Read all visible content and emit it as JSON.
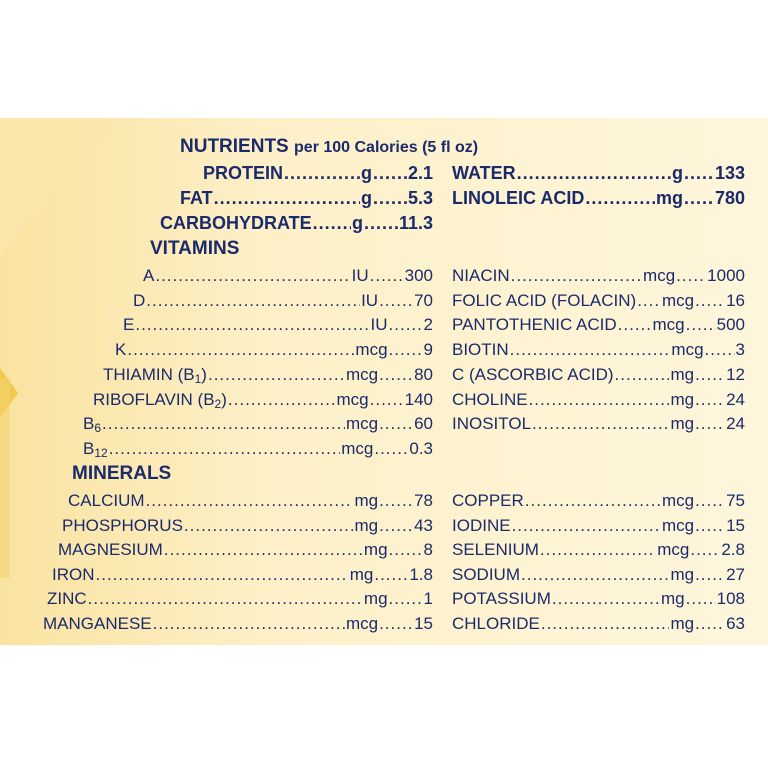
{
  "header": {
    "title": "NUTRIENTS",
    "subtitle": "per 100 Calories (5 fl oz)"
  },
  "macros_left": [
    {
      "label": "PROTEIN",
      "unit": "g",
      "value": "2.1"
    },
    {
      "label": "FAT",
      "unit": "g",
      "value": "5.3"
    },
    {
      "label": "CARBOHYDRATE",
      "unit": "g",
      "value": "11.3"
    }
  ],
  "macros_right": [
    {
      "label": "WATER",
      "unit": "g",
      "value": "133"
    },
    {
      "label": "LINOLEIC ACID",
      "unit": "mg",
      "value": "780"
    }
  ],
  "vitamins_heading": "VITAMINS",
  "vitamins_left": [
    {
      "label": "A",
      "unit": "IU",
      "value": "300"
    },
    {
      "label": "D",
      "unit": "IU",
      "value": "70"
    },
    {
      "label": "E",
      "unit": "IU",
      "value": "2"
    },
    {
      "label": "K",
      "unit": "mcg",
      "value": "9"
    },
    {
      "label": "THIAMIN (B",
      "sub": "1",
      "label_end": ")",
      "unit": "mcg",
      "value": "80"
    },
    {
      "label": "RIBOFLAVIN (B",
      "sub": "2",
      "label_end": ")",
      "unit": "mcg",
      "value": "140"
    },
    {
      "label": "B",
      "sub": "6",
      "label_end": "",
      "unit": "mcg",
      "value": "60"
    },
    {
      "label": "B",
      "sub": "12",
      "label_end": "",
      "unit": "mcg",
      "value": "0.3"
    }
  ],
  "vitamins_right": [
    {
      "label": "NIACIN",
      "unit": "mcg",
      "value": "1000"
    },
    {
      "label": "FOLIC ACID (FOLACIN)",
      "unit": "mcg",
      "value": "16"
    },
    {
      "label": "PANTOTHENIC ACID",
      "unit": "mcg",
      "value": "500"
    },
    {
      "label": "BIOTIN",
      "unit": "mcg",
      "value": "3"
    },
    {
      "label": "C (ASCORBIC ACID)",
      "unit": "mg",
      "value": "12"
    },
    {
      "label": "CHOLINE",
      "unit": "mg",
      "value": "24"
    },
    {
      "label": "INOSITOL",
      "unit": "mg",
      "value": "24"
    }
  ],
  "minerals_heading": "MINERALS",
  "minerals_left": [
    {
      "label": "CALCIUM",
      "unit": "mg",
      "value": "78"
    },
    {
      "label": "PHOSPHORUS",
      "unit": "mg",
      "value": "43"
    },
    {
      "label": "MAGNESIUM",
      "unit": "mg",
      "value": "8"
    },
    {
      "label": "IRON",
      "unit": "mg",
      "value": "1.8"
    },
    {
      "label": "ZINC",
      "unit": "mg",
      "value": "1"
    },
    {
      "label": "MANGANESE",
      "unit": "mcg",
      "value": "15"
    }
  ],
  "minerals_right": [
    {
      "label": "COPPER",
      "unit": "mcg",
      "value": "75"
    },
    {
      "label": "IODINE",
      "unit": "mcg",
      "value": "15"
    },
    {
      "label": "SELENIUM",
      "unit": "mcg",
      "value": "2.8"
    },
    {
      "label": "SODIUM",
      "unit": "mg",
      "value": "27"
    },
    {
      "label": "POTASSIUM",
      "unit": "mg",
      "value": "108"
    },
    {
      "label": "CHLORIDE",
      "unit": "mg",
      "value": "63"
    }
  ],
  "colors": {
    "text": "#1b2a6b",
    "panel_light": "#fdf2cf",
    "panel_gold": "#f7d77c",
    "page": "#ffffff"
  }
}
